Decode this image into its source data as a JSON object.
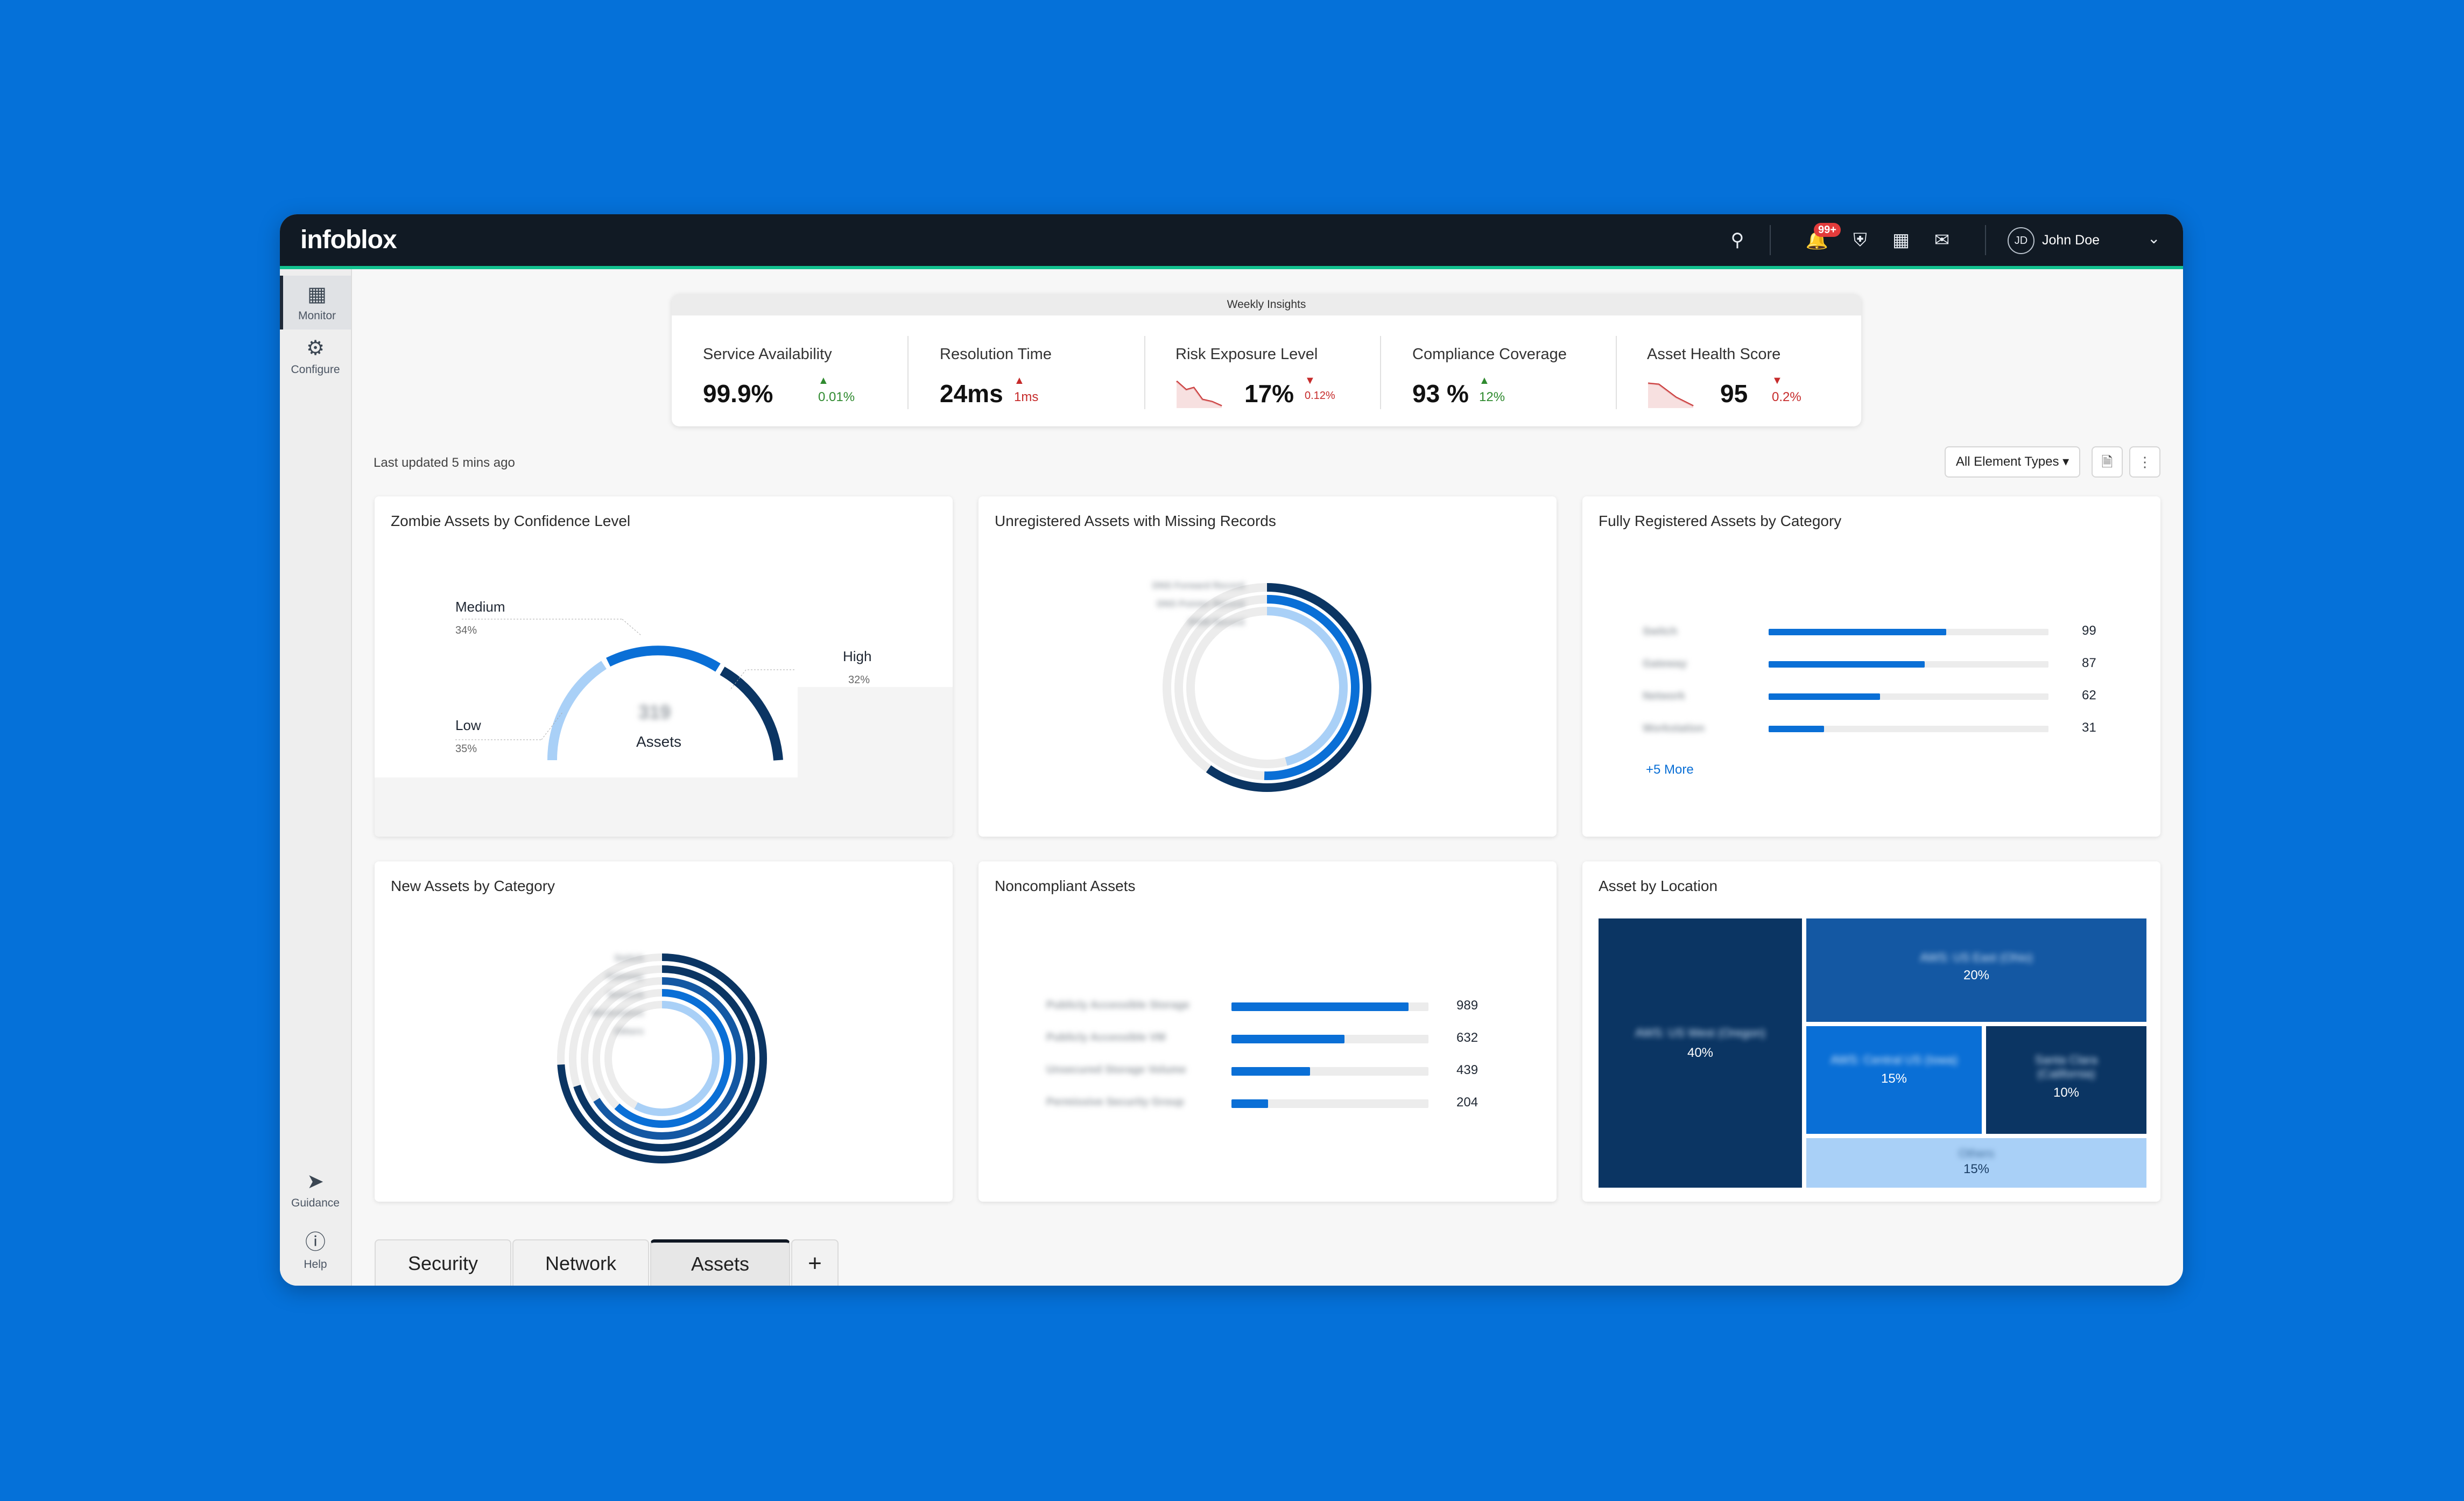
{
  "app": {
    "brand": "infoblox",
    "user_initials": "JD",
    "user_name": "John Doe",
    "notification_badge": "99+"
  },
  "sidebar": {
    "items": [
      {
        "label": "Monitor"
      },
      {
        "label": "Configure"
      },
      {
        "label": "Guidance"
      },
      {
        "label": "Help"
      }
    ]
  },
  "insights": {
    "header": "Weekly Insights",
    "metrics": [
      {
        "label": "Service Availability",
        "value": "99.9%",
        "delta": "0.01%",
        "trend": "up"
      },
      {
        "label": "Resolution Time",
        "value": "24ms",
        "delta": "1ms",
        "trend": "up"
      },
      {
        "label": "Risk Exposure Level",
        "value": "17%",
        "delta": "0.12%",
        "trend": "down"
      },
      {
        "label": "Compliance Coverage",
        "value": "93 %",
        "delta": "12%",
        "trend": "up"
      },
      {
        "label": "Asset Health Score",
        "value": "95",
        "delta": "0.2%",
        "trend": "down"
      }
    ]
  },
  "toolbar": {
    "last_updated": "Last updated 5 mins ago",
    "filter_label": "All Element Types"
  },
  "cards": {
    "zombie": {
      "title": "Zombie Assets by Confidence Level",
      "center_label": "Assets",
      "center_value": "319",
      "segments": [
        {
          "name": "Medium",
          "pct": "34%"
        },
        {
          "name": "High",
          "pct": "32%"
        },
        {
          "name": "Low",
          "pct": "35%"
        }
      ]
    },
    "unregistered": {
      "title": "Unregistered Assets with Missing Records",
      "legend": [
        "DNS Forward Record",
        "DNS Pointer Record",
        "IPAM Record"
      ]
    },
    "fully": {
      "title": "Fully Registered Assets by Category",
      "more": "+5 More",
      "rows": [
        {
          "label": "Switch",
          "value": 99
        },
        {
          "label": "Gateway",
          "value": 87
        },
        {
          "label": "Network",
          "value": 62
        },
        {
          "label": "Workstation",
          "value": 31
        }
      ]
    },
    "new_assets": {
      "title": "New Assets by Category",
      "legend": [
        "Switch",
        "Gateway",
        "Network",
        "Workstation",
        "Others"
      ]
    },
    "noncompliant": {
      "title": "Noncompliant Assets",
      "rows": [
        {
          "label": "Publicly Accessible Storage",
          "value": 989
        },
        {
          "label": "Publicly Accessible VM",
          "value": 632
        },
        {
          "label": "Unsecured Storage Volume",
          "value": 439
        },
        {
          "label": "Permissive Security Group",
          "value": 204
        }
      ]
    },
    "location": {
      "title": "Asset by Location",
      "cells": [
        {
          "name": "AWS: US West (Oregon)",
          "pct": "40%"
        },
        {
          "name": "AWS: US East (Ohio)",
          "pct": "20%"
        },
        {
          "name": "AWS: Central US (Iowa)",
          "pct": "15%"
        },
        {
          "name": "Santa Clara (California)",
          "pct": "10%"
        },
        {
          "name": "Others",
          "pct": "15%"
        }
      ]
    }
  },
  "tabs": [
    {
      "label": "Security"
    },
    {
      "label": "Network"
    },
    {
      "label": "Assets"
    }
  ],
  "colors": {
    "accent": "#0a6fd6",
    "dark_navy": "#0b3563",
    "light_blue": "#a9d0f7",
    "track": "#ececec"
  }
}
